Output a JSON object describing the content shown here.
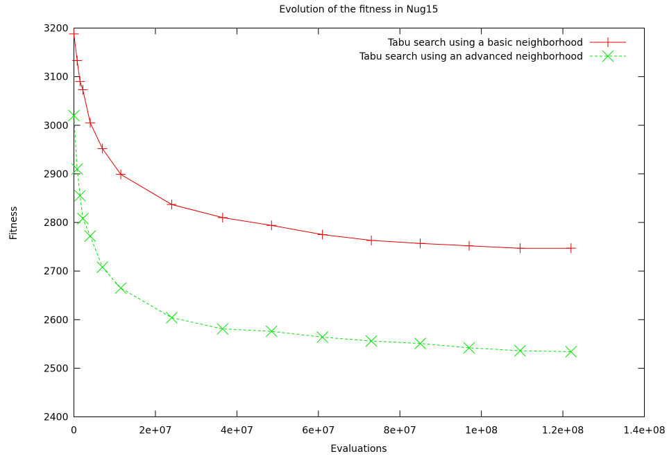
{
  "chart_data": {
    "type": "line",
    "title": "Evolution of the fitness in Nug15",
    "xlabel": "Evaluations",
    "ylabel": "Fitness",
    "xlim": [
      0,
      140000000
    ],
    "ylim": [
      2400,
      3200
    ],
    "xticks": [
      0,
      20000000,
      40000000,
      60000000,
      80000000,
      100000000,
      120000000,
      140000000
    ],
    "xtick_labels": [
      "0",
      "2e+07",
      "4e+07",
      "6e+07",
      "8e+07",
      "1e+08",
      "1.2e+08",
      "1.4e+08"
    ],
    "yticks": [
      2400,
      2500,
      2600,
      2700,
      2800,
      2900,
      3000,
      3100,
      3200
    ],
    "ytick_labels": [
      "2400",
      "2500",
      "2600",
      "2700",
      "2800",
      "2900",
      "3000",
      "3100",
      "3200"
    ],
    "grid": false,
    "legend_position": "top-right",
    "series": [
      {
        "name": "Tabu search using a basic neighborhood",
        "color": "#e00000",
        "line_style": "solid",
        "marker": "plus",
        "x": [
          0,
          800000,
          1500000,
          2200000,
          4000000,
          7000000,
          11500000,
          24000000,
          36500000,
          48500000,
          61000000,
          73000000,
          85000000,
          97000000,
          109500000,
          122000000
        ],
        "y": [
          3188,
          3133,
          3090,
          3073,
          3005,
          2952,
          2899,
          2837,
          2810,
          2794,
          2775,
          2763,
          2757,
          2752,
          2747,
          2747
        ]
      },
      {
        "name": "Tabu search using an advanced neighborhood",
        "color": "#00e000",
        "line_style": "dashed",
        "marker": "x",
        "x": [
          0,
          800000,
          1500000,
          2200000,
          4000000,
          7000000,
          11500000,
          24000000,
          36500000,
          48500000,
          61000000,
          73000000,
          85000000,
          97000000,
          109500000,
          122000000
        ],
        "y": [
          3020,
          2910,
          2855,
          2808,
          2772,
          2708,
          2665,
          2604,
          2581,
          2576,
          2564,
          2556,
          2551,
          2542,
          2536,
          2534
        ]
      }
    ]
  }
}
